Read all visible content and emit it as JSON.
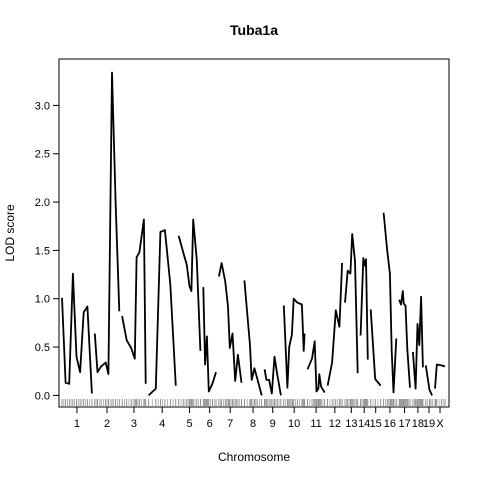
{
  "chart_data": {
    "type": "line",
    "title": "Tuba1a",
    "xlabel": "Chromosome",
    "ylabel": "LOD score",
    "ylim": [
      -0.12,
      3.48
    ],
    "yticks": [
      0.0,
      0.5,
      1.0,
      1.5,
      2.0,
      2.5,
      3.0
    ],
    "ytick_labels": [
      "0.0",
      "0.5",
      "1.0",
      "1.5",
      "2.0",
      "2.5",
      "3.0"
    ],
    "grid": false,
    "legend": "none",
    "line_color": "#000000",
    "chromosomes": [
      {
        "name": "1",
        "label": "1",
        "points": [
          [
            0,
            1.01
          ],
          [
            4,
            0.13
          ],
          [
            8,
            0.12
          ],
          [
            12,
            1.26
          ],
          [
            16,
            0.4
          ],
          [
            20,
            0.24
          ],
          [
            24,
            0.86
          ],
          [
            28,
            0.92
          ],
          [
            33,
            0.02
          ]
        ]
      },
      {
        "name": "2",
        "label": "2",
        "points": [
          [
            0,
            0.64
          ],
          [
            3,
            0.24
          ],
          [
            7,
            0.3
          ],
          [
            12,
            0.34
          ],
          [
            15,
            0.22
          ],
          [
            19,
            3.34
          ],
          [
            23,
            2.0
          ],
          [
            27,
            0.87
          ]
        ]
      },
      {
        "name": "3",
        "label": "3",
        "points": [
          [
            0,
            0.82
          ],
          [
            5,
            0.57
          ],
          [
            10,
            0.49
          ],
          [
            14,
            0.38
          ],
          [
            16,
            1.43
          ],
          [
            19,
            1.48
          ],
          [
            24,
            1.82
          ],
          [
            26,
            0.12
          ]
        ]
      },
      {
        "name": "4",
        "label": "4",
        "points": [
          [
            0,
            0.0
          ],
          [
            8,
            0.07
          ],
          [
            13,
            1.69
          ],
          [
            18,
            1.71
          ],
          [
            24,
            1.15
          ],
          [
            30,
            0.1
          ]
        ]
      },
      {
        "name": "5",
        "label": "5",
        "points": [
          [
            0,
            1.65
          ],
          [
            5,
            1.48
          ],
          [
            9,
            1.35
          ],
          [
            12,
            1.13
          ],
          [
            14,
            1.08
          ],
          [
            16,
            1.82
          ],
          [
            20,
            1.4
          ],
          [
            24,
            0.46
          ]
        ]
      },
      {
        "name": "6",
        "label": "6",
        "points": [
          [
            0,
            1.12
          ],
          [
            2,
            0.32
          ],
          [
            4,
            0.61
          ],
          [
            6,
            0.04
          ],
          [
            10,
            0.12
          ],
          [
            14,
            0.24
          ]
        ]
      },
      {
        "name": "7",
        "label": "7",
        "points": [
          [
            0,
            1.23
          ],
          [
            3,
            1.37
          ],
          [
            7,
            1.18
          ],
          [
            10,
            0.92
          ],
          [
            12,
            0.49
          ],
          [
            15,
            0.64
          ],
          [
            18,
            0.15
          ],
          [
            21,
            0.42
          ],
          [
            25,
            0.13
          ]
        ]
      },
      {
        "name": "8",
        "label": "8",
        "points": [
          [
            0,
            1.19
          ],
          [
            6,
            0.53
          ],
          [
            8,
            0.16
          ],
          [
            11,
            0.28
          ],
          [
            14,
            0.18
          ],
          [
            19,
            0.0
          ]
        ]
      },
      {
        "name": "9",
        "label": "9",
        "points": [
          [
            0,
            0.27
          ],
          [
            2,
            0.16
          ],
          [
            5,
            0.16
          ],
          [
            8,
            0.02
          ],
          [
            11,
            0.4
          ],
          [
            14,
            0.22
          ],
          [
            18,
            0.0
          ]
        ]
      },
      {
        "name": "10",
        "label": "10",
        "points": [
          [
            0,
            0.93
          ],
          [
            4,
            0.08
          ],
          [
            6,
            0.5
          ],
          [
            9,
            0.63
          ],
          [
            11,
            1.0
          ],
          [
            15,
            0.96
          ],
          [
            20,
            0.94
          ],
          [
            22,
            0.46
          ],
          [
            23,
            0.64
          ]
        ]
      },
      {
        "name": "11",
        "label": "11",
        "points": [
          [
            0,
            0.27
          ],
          [
            5,
            0.38
          ],
          [
            8,
            0.56
          ],
          [
            10,
            0.04
          ],
          [
            12,
            0.07
          ],
          [
            13,
            0.22
          ],
          [
            15,
            0.09
          ],
          [
            19,
            0.03
          ]
        ]
      },
      {
        "name": "12",
        "label": "12",
        "points": [
          [
            0,
            0.1
          ],
          [
            5,
            0.34
          ],
          [
            9,
            0.88
          ],
          [
            13,
            0.71
          ],
          [
            16,
            1.37
          ]
        ]
      },
      {
        "name": "13",
        "label": "13",
        "points": [
          [
            0,
            0.96
          ],
          [
            3,
            1.29
          ],
          [
            6,
            1.26
          ],
          [
            8,
            1.67
          ],
          [
            11,
            1.39
          ],
          [
            14,
            0.23
          ]
        ]
      },
      {
        "name": "14",
        "label": "14",
        "points": [
          [
            0,
            0.62
          ],
          [
            3,
            1.42
          ],
          [
            5,
            1.34
          ],
          [
            6,
            1.41
          ],
          [
            8,
            0.37
          ]
        ]
      },
      {
        "name": "15",
        "label": "15",
        "points": [
          [
            0,
            0.89
          ],
          [
            5,
            0.17
          ],
          [
            11,
            0.1
          ]
        ]
      },
      {
        "name": "16",
        "label": "16",
        "points": [
          [
            0,
            1.89
          ],
          [
            4,
            1.5
          ],
          [
            7,
            1.26
          ],
          [
            9,
            0.46
          ],
          [
            11,
            0.03
          ],
          [
            14,
            0.59
          ]
        ]
      },
      {
        "name": "17",
        "label": "17",
        "points": [
          [
            0,
            0.99
          ],
          [
            2,
            0.94
          ],
          [
            4,
            1.08
          ],
          [
            5,
            0.95
          ],
          [
            7,
            0.93
          ],
          [
            9,
            0.48
          ],
          [
            12,
            0.08
          ]
        ]
      },
      {
        "name": "18",
        "label": "18",
        "points": [
          [
            0,
            0.45
          ],
          [
            3,
            0.07
          ],
          [
            5,
            0.74
          ],
          [
            7,
            0.52
          ],
          [
            9,
            1.02
          ],
          [
            11,
            0.29
          ]
        ]
      },
      {
        "name": "19",
        "label": "19",
        "points": [
          [
            0,
            0.31
          ],
          [
            4,
            0.06
          ],
          [
            7,
            0.0
          ]
        ]
      },
      {
        "name": "X",
        "label": "X",
        "points": [
          [
            0,
            0.07
          ],
          [
            2,
            0.32
          ],
          [
            7,
            0.31
          ],
          [
            11,
            0.3
          ]
        ]
      }
    ]
  }
}
